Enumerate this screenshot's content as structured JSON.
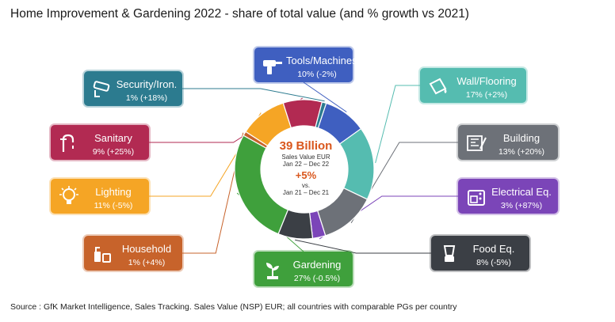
{
  "title": "Home Improvement & Gardening 2022 - share of total value (and % growth vs 2021)",
  "source": "Source : GfK Market Intelligence, Sales Tracking. Sales Value (NSP) EUR; all countries with comparable PGs per country",
  "center": {
    "value": "39 Billion",
    "line1": "Sales Value EUR",
    "line2": "Jan 22 – Dec 22",
    "growth": "+5%",
    "vs": "vs.",
    "line3": "Jan 21 – Dec 21"
  },
  "colors": {
    "tools": "#3f5fc0",
    "wall": "#55bcb0",
    "building": "#6d7178",
    "electrical": "#7b45b8",
    "food": "#3b3f45",
    "gardening": "#3fa03c",
    "household": "#c7632b",
    "lighting": "#f5a525",
    "sanitary": "#b22a52",
    "security": "#2c7b8f"
  },
  "chart_data": {
    "type": "pie",
    "title": "Home Improvement & Gardening 2022 - share of total value (and % growth vs 2021)",
    "categories": [
      "Tools/Machines",
      "Wall/Flooring",
      "Building",
      "Electrical Eq.",
      "Food Eq.",
      "Gardening",
      "Household",
      "Lighting",
      "Sanitary",
      "Security/Iron."
    ],
    "values": [
      10,
      17,
      13,
      3,
      8,
      27,
      1,
      11,
      9,
      1
    ],
    "growth": [
      "-2%",
      "+2%",
      "+20%",
      "+87%",
      "-5%",
      "-0.5%",
      "+4%",
      "-5%",
      "+25%",
      "+18%"
    ],
    "labels": [
      "10% (-2%)",
      "17% (+2%)",
      "13% (+20%)",
      "3% (+87%)",
      "8% (-5%)",
      "27% (-0.5%)",
      "1% (+4%)",
      "11% (-5%)",
      "9% (+25%)",
      "1% (+18%)"
    ],
    "icons": [
      "drill-icon",
      "paint-bucket-icon",
      "blueprint-icon",
      "stove-icon",
      "blender-icon",
      "plant-icon",
      "cleaning-supplies-icon",
      "lamp-icon",
      "faucet-icon",
      "cctv-camera-icon"
    ]
  }
}
